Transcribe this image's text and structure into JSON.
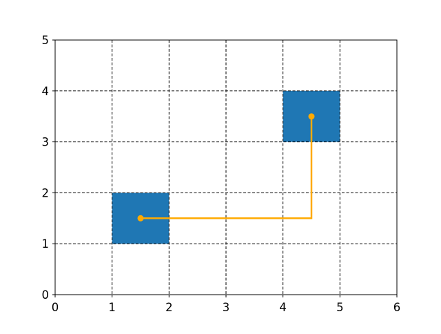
{
  "chart_data": {
    "type": "scatter",
    "title": "",
    "xlabel": "",
    "ylabel": "",
    "xlim": [
      0,
      6
    ],
    "ylim": [
      0,
      5
    ],
    "xticks": [
      "0",
      "1",
      "2",
      "3",
      "4",
      "5",
      "6"
    ],
    "yticks": [
      "0",
      "1",
      "2",
      "3",
      "4",
      "5"
    ],
    "grid": true,
    "grid_style": "dashed",
    "cells": [
      {
        "x": [
          1,
          2
        ],
        "y": [
          1,
          2
        ],
        "color": "#1f77b4"
      },
      {
        "x": [
          4,
          5
        ],
        "y": [
          3,
          4
        ],
        "color": "#1f77b4"
      }
    ],
    "path": {
      "color": "#ffaa00",
      "points": [
        [
          1.5,
          1.5
        ],
        [
          4.5,
          1.5
        ],
        [
          4.5,
          3.5
        ]
      ],
      "markers": [
        [
          1.5,
          1.5
        ],
        [
          4.5,
          3.5
        ]
      ]
    }
  }
}
